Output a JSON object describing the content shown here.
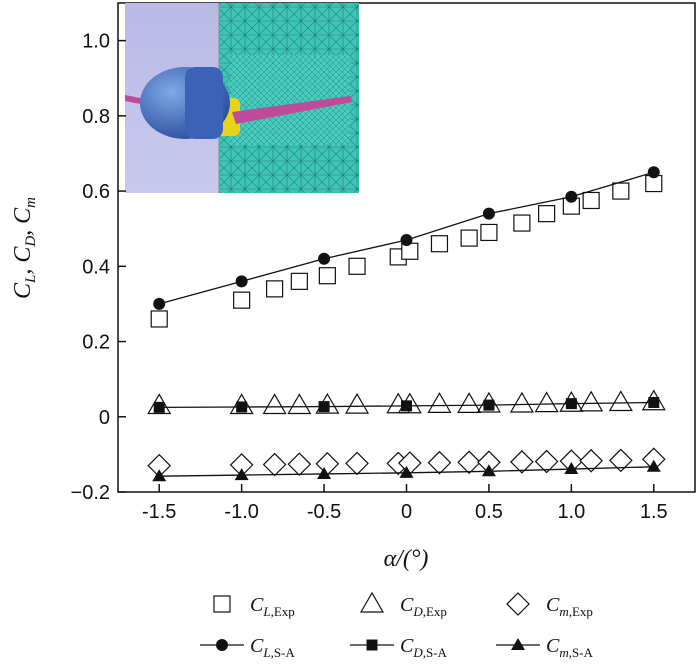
{
  "chart_data": {
    "type": "scatter",
    "ylabel": "C_L, C_D, C_m",
    "xlabel": "α/(°)",
    "xlim": [
      -1.75,
      1.75
    ],
    "ylim": [
      -0.2,
      1.1
    ],
    "x_ticks": [
      -1.5,
      -1.0,
      -0.5,
      0,
      0.5,
      1.0,
      1.5
    ],
    "x_tick_labels": [
      "-1.5",
      "-1.0",
      "-0.5",
      "0",
      "0.5",
      "1.0",
      "1.5"
    ],
    "y_ticks": [
      -0.2,
      0,
      0.2,
      0.4,
      0.6,
      0.8,
      1.0
    ],
    "y_tick_labels": [
      "−0.2",
      "0",
      "0.2",
      "0.4",
      "0.6",
      "0.8",
      "1.0"
    ],
    "grid": false,
    "legend_placement": "bottom",
    "series": [
      {
        "name": "C_L,Exp",
        "marker": "open-square",
        "line": false,
        "x": [
          -1.5,
          -1.0,
          -0.8,
          -0.65,
          -0.48,
          -0.3,
          -0.05,
          0.02,
          0.2,
          0.38,
          0.5,
          0.7,
          0.85,
          1.0,
          1.12,
          1.3,
          1.5
        ],
        "y": [
          0.26,
          0.31,
          0.34,
          0.36,
          0.375,
          0.4,
          0.425,
          0.44,
          0.46,
          0.475,
          0.49,
          0.515,
          0.54,
          0.56,
          0.575,
          0.6,
          0.62
        ]
      },
      {
        "name": "C_D,Exp",
        "marker": "open-triangle",
        "line": false,
        "x": [
          -1.5,
          -1.0,
          -0.8,
          -0.65,
          -0.48,
          -0.3,
          -0.05,
          0.02,
          0.2,
          0.38,
          0.5,
          0.7,
          0.85,
          1.0,
          1.12,
          1.3,
          1.5
        ],
        "y": [
          0.03,
          0.03,
          0.03,
          0.03,
          0.031,
          0.031,
          0.032,
          0.032,
          0.033,
          0.033,
          0.034,
          0.034,
          0.035,
          0.036,
          0.037,
          0.038,
          0.04
        ]
      },
      {
        "name": "C_m,Exp",
        "marker": "open-diamond",
        "line": false,
        "x": [
          -1.5,
          -1.0,
          -0.8,
          -0.65,
          -0.48,
          -0.3,
          -0.05,
          0.02,
          0.2,
          0.38,
          0.5,
          0.7,
          0.85,
          1.0,
          1.12,
          1.3,
          1.5
        ],
        "y": [
          -0.13,
          -0.128,
          -0.127,
          -0.126,
          -0.125,
          -0.124,
          -0.124,
          -0.123,
          -0.122,
          -0.121,
          -0.121,
          -0.12,
          -0.119,
          -0.118,
          -0.117,
          -0.116,
          -0.113
        ]
      },
      {
        "name": "C_L,S-A",
        "marker": "filled-circle",
        "line": true,
        "x": [
          -1.5,
          -1.0,
          -0.5,
          0,
          0.5,
          1.0,
          1.5
        ],
        "y": [
          0.3,
          0.36,
          0.42,
          0.47,
          0.54,
          0.585,
          0.65
        ]
      },
      {
        "name": "C_D,S-A",
        "marker": "filled-square",
        "line": true,
        "x": [
          -1.5,
          -1.0,
          -0.5,
          0,
          0.5,
          1.0,
          1.5
        ],
        "y": [
          0.025,
          0.026,
          0.027,
          0.029,
          0.031,
          0.035,
          0.038
        ]
      },
      {
        "name": "C_m,S-A",
        "marker": "filled-triangle",
        "line": true,
        "x": [
          -1.5,
          -1.0,
          -0.5,
          0,
          0.5,
          1.0,
          1.5
        ],
        "y": [
          -0.158,
          -0.155,
          -0.152,
          -0.149,
          -0.145,
          -0.139,
          -0.133
        ]
      }
    ],
    "legend": [
      {
        "series": 0,
        "base": "C",
        "sub": "L,Exp"
      },
      {
        "series": 1,
        "base": "C",
        "sub": "D,Exp"
      },
      {
        "series": 2,
        "base": "C",
        "sub": "m,Exp"
      },
      {
        "series": 3,
        "base": "C",
        "sub": "L,S-A"
      },
      {
        "series": 4,
        "base": "C",
        "sub": "D,S-A"
      },
      {
        "series": 5,
        "base": "C",
        "sub": "m,S-A"
      }
    ],
    "inset": {
      "description_icon": "cfd-mesh-inset-icon"
    }
  }
}
